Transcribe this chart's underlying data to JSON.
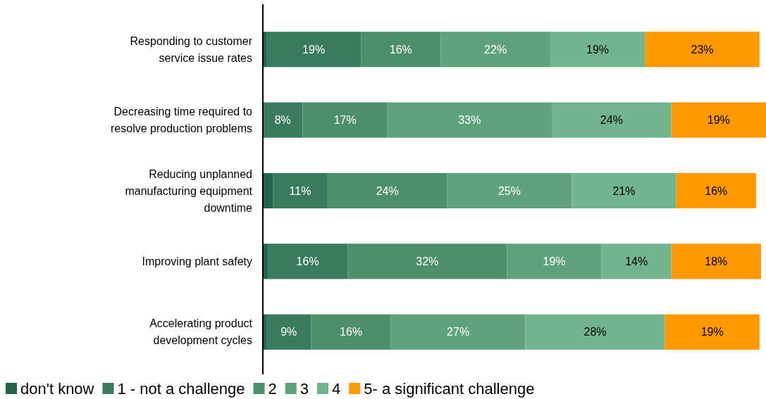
{
  "chart_data": {
    "type": "bar",
    "orientation": "horizontal",
    "stacked": true,
    "legend": "bottom",
    "tick_labels": "y",
    "categories": [
      "Responding to customer service issue rates",
      "Decreasing time required to resolve production problems",
      "Reducing unplanned manufacturing equipment downtime",
      "Improving plant safety",
      "Accelerating product development cycles"
    ],
    "xlim": [
      0,
      101
    ],
    "series": [
      {
        "name": "don't know",
        "color": "#22634a",
        "values": [
          0.7,
          0,
          2,
          1,
          0.7
        ],
        "value_labels": [
          null,
          null,
          null,
          null,
          null
        ]
      },
      {
        "name": "1 - not a challenge",
        "color": "#3a7a5e",
        "values": [
          19,
          8,
          11,
          16,
          9
        ],
        "value_labels": [
          "19%",
          "8%",
          "11%",
          "16%",
          "9%"
        ]
      },
      {
        "name": "2",
        "color": "#4d8f6b",
        "values": [
          16,
          17,
          24,
          32,
          16
        ],
        "value_labels": [
          "16%",
          "17%",
          "24%",
          "32%",
          "16%"
        ]
      },
      {
        "name": "3",
        "color": "#5fa27c",
        "values": [
          22,
          33,
          25,
          19,
          27
        ],
        "value_labels": [
          "22%",
          "33%",
          "25%",
          "19%",
          "27%"
        ]
      },
      {
        "name": "4",
        "color": "#73b48e",
        "values": [
          19,
          24,
          21,
          14,
          28
        ],
        "value_labels": [
          "19%",
          "24%",
          "21%",
          "14%",
          "28%"
        ]
      },
      {
        "name": "5- a significant challenge",
        "color": "#ff9900",
        "values": [
          23,
          19,
          16,
          18,
          19
        ],
        "value_labels": [
          "23%",
          "19%",
          "16%",
          "18%",
          "19%"
        ]
      }
    ]
  }
}
